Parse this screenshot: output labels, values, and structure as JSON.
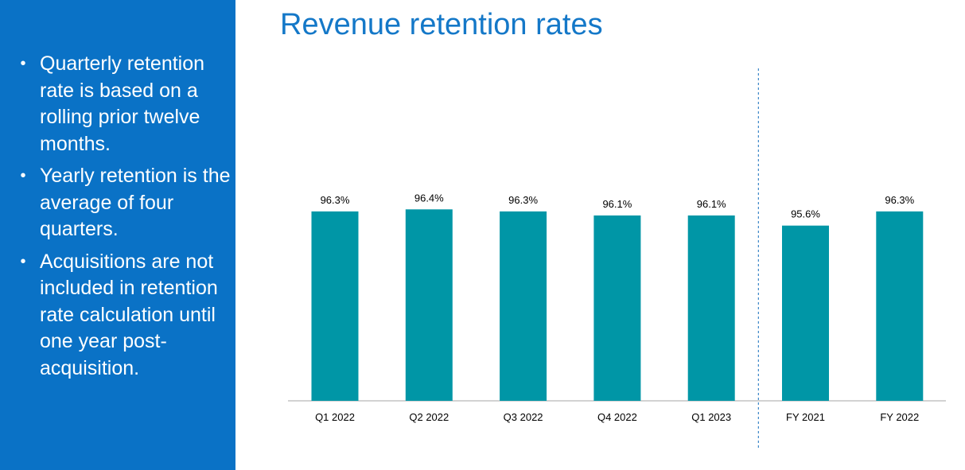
{
  "sidebar": {
    "bullets": [
      "Quarterly retention rate is based on a rolling prior twelve months.",
      "Yearly retention is the average of four quarters.",
      "Acquisitions are not included in retention rate calculation until one year post-acquisition."
    ]
  },
  "title": "Revenue retention rates",
  "colors": {
    "sidebar_bg": "#0A72C6",
    "title": "#1478C8",
    "bar": "#0096A6",
    "divider": "#3A86C8",
    "axis": "#A6A6A6"
  },
  "chart_data": {
    "type": "bar",
    "title": "Revenue retention rates",
    "xlabel": "",
    "ylabel": "",
    "categories": [
      "Q1 2022",
      "Q2 2022",
      "Q3 2022",
      "Q4 2022",
      "Q1 2023",
      "FY 2021",
      "FY 2022"
    ],
    "values": [
      96.3,
      96.4,
      96.3,
      96.1,
      96.1,
      95.6,
      96.3
    ],
    "value_labels": [
      "96.3%",
      "96.4%",
      "96.3%",
      "96.1%",
      "96.1%",
      "95.6%",
      "96.3%"
    ],
    "divider_after_index": 4,
    "grid": false,
    "legend": "none"
  }
}
